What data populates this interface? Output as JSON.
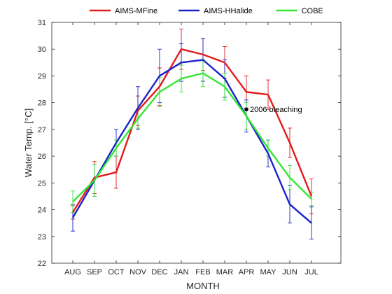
{
  "chart_data": {
    "type": "line",
    "title": "",
    "xlabel": "MONTH",
    "ylabel": "Water Temp. [°C]",
    "categories": [
      "AUG",
      "SEP",
      "OCT",
      "NOV",
      "DEC",
      "JAN",
      "FEB",
      "MAR",
      "APR",
      "MAY",
      "JUN",
      "JUL"
    ],
    "ylim": [
      22,
      31
    ],
    "yticks": [
      "22",
      "23",
      "24",
      "25",
      "26",
      "27",
      "28",
      "29",
      "30",
      "31"
    ],
    "grid": false,
    "legend_position": "top",
    "series": [
      {
        "name": "AIMS-MFine",
        "color": "#e41a1c",
        "values": [
          23.9,
          25.2,
          25.4,
          27.7,
          28.6,
          30.0,
          29.8,
          29.5,
          28.4,
          28.3,
          26.5,
          24.5
        ],
        "err": [
          0.25,
          0.6,
          0.6,
          0.55,
          0.7,
          0.75,
          0.6,
          0.6,
          0.6,
          0.55,
          0.55,
          0.65
        ]
      },
      {
        "name": "AIMS-HHalide",
        "color": "#1a23c8",
        "values": [
          23.7,
          25.1,
          26.5,
          27.8,
          29.0,
          29.5,
          29.6,
          28.9,
          27.5,
          26.1,
          24.2,
          23.5
        ],
        "err": [
          0.5,
          0.6,
          0.5,
          0.8,
          1.0,
          0.7,
          0.8,
          0.7,
          0.6,
          0.5,
          0.7,
          0.6
        ]
      },
      {
        "name": "COBE",
        "color": "#33e633",
        "values": [
          24.3,
          25.1,
          26.3,
          27.4,
          28.4,
          28.9,
          29.1,
          28.6,
          27.5,
          26.3,
          25.2,
          24.4
        ],
        "err": [
          0.4,
          0.6,
          0.3,
          0.35,
          0.55,
          0.5,
          0.5,
          0.5,
          0.5,
          0.3,
          0.45,
          0.25
        ]
      }
    ],
    "annotations": [
      {
        "text": "2006 bleaching",
        "x": "APR",
        "y": 27.75,
        "marker": "dot"
      }
    ]
  }
}
